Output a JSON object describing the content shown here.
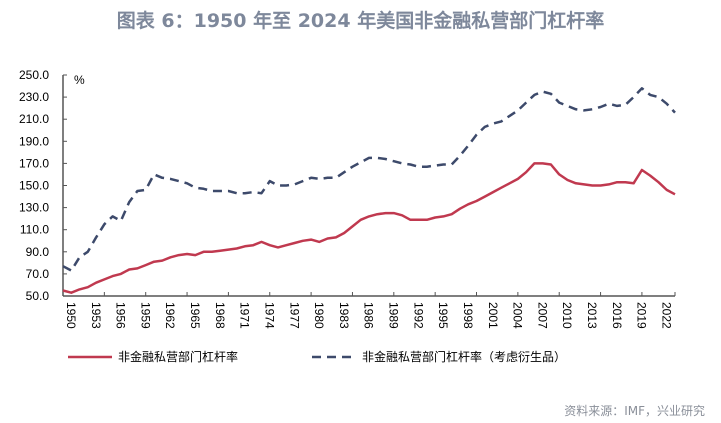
{
  "chart_data": {
    "type": "line",
    "title": "图表 6：1950 年至 2024 年美国非金融私营部门杠杆率",
    "ylabel": "%",
    "ylim": [
      50,
      250
    ],
    "yticks": [
      "50.0",
      "70.0",
      "90.0",
      "110.0",
      "130.0",
      "150.0",
      "170.0",
      "190.0",
      "210.0",
      "230.0",
      "250.0"
    ],
    "xlim": [
      1950,
      2024
    ],
    "xticks": [
      "1950",
      "1953",
      "1956",
      "1959",
      "1962",
      "1965",
      "1968",
      "1971",
      "1974",
      "1977",
      "1980",
      "1983",
      "1986",
      "1989",
      "1992",
      "1995",
      "1998",
      "2001",
      "2004",
      "2007",
      "2010",
      "2013",
      "2016",
      "2019",
      "2022"
    ],
    "legend_position": "bottom",
    "start_year": 1950,
    "series": [
      {
        "name": "非金融私营部门杠杆率",
        "color": "#c0394f",
        "dashed": false,
        "values": [
          55,
          53,
          56,
          58,
          62,
          65,
          68,
          70,
          74,
          75,
          78,
          81,
          82,
          85,
          87,
          88,
          87,
          90,
          90,
          91,
          92,
          93,
          95,
          96,
          99,
          96,
          94,
          96,
          98,
          100,
          101,
          99,
          102,
          103,
          107,
          113,
          119,
          122,
          124,
          125,
          125,
          123,
          119,
          119,
          119,
          121,
          122,
          124,
          129,
          133,
          136,
          140,
          144,
          148,
          152,
          156,
          162,
          170,
          170,
          169,
          160,
          155,
          152,
          151,
          150,
          150,
          151,
          153,
          153,
          152,
          164,
          159,
          153,
          146,
          142
        ]
      },
      {
        "name": "非金融私营部门杠杆率（考虑衍生品）",
        "color": "#3d4a6b",
        "dashed": true,
        "values": [
          77,
          73,
          85,
          90,
          103,
          115,
          122,
          118,
          135,
          145,
          146,
          160,
          157,
          156,
          154,
          152,
          148,
          147,
          145,
          145,
          145,
          143,
          143,
          144,
          143,
          154,
          150,
          150,
          151,
          154,
          157,
          156,
          157,
          157,
          162,
          167,
          171,
          175,
          175,
          174,
          172,
          170,
          169,
          167,
          167,
          168,
          169,
          169,
          177,
          186,
          196,
          203,
          206,
          208,
          213,
          218,
          225,
          232,
          235,
          233,
          225,
          222,
          219,
          218,
          219,
          221,
          224,
          222,
          223,
          230,
          238,
          232,
          230,
          224,
          216
        ]
      }
    ]
  },
  "source": "资料来源：IMF，兴业研究"
}
